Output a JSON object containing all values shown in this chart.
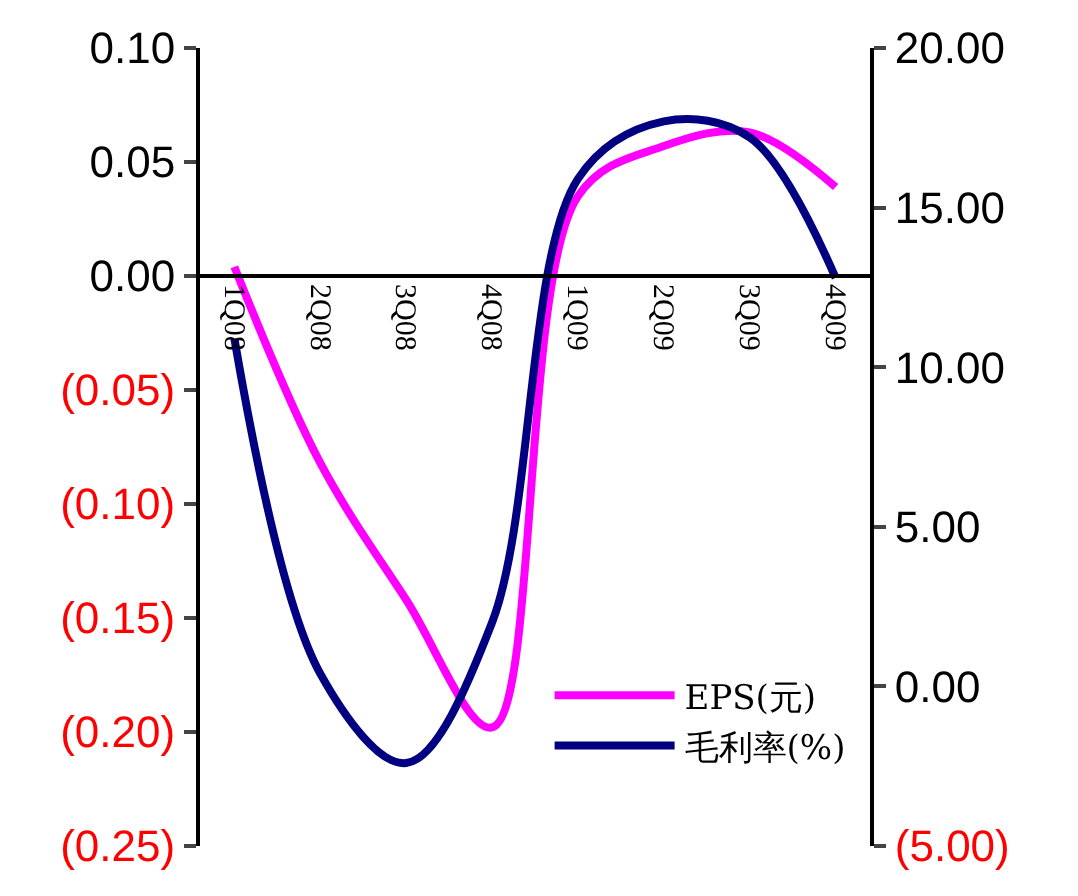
{
  "chart_data": {
    "type": "line",
    "categories": [
      "1Q08",
      "2Q08",
      "3Q08",
      "4Q08",
      "1Q09",
      "2Q09",
      "3Q09",
      "4Q09"
    ],
    "series": [
      {
        "name": "EPS(元)",
        "color": "#ff00ff",
        "values": [
          0.004,
          -0.082,
          -0.142,
          -0.198,
          0.035,
          0.057,
          0.063,
          0.039
        ]
      },
      {
        "name": "毛利率(%)",
        "color": "#000080",
        "axis": "y2",
        "values": [
          10.9,
          0.4,
          -2.4,
          2.0,
          15.9,
          17.7,
          17.2,
          12.8
        ]
      }
    ],
    "ylim": [
      -0.25,
      0.1
    ],
    "yticks": [
      {
        "value": -0.25,
        "label": "(0.25)"
      },
      {
        "value": -0.2,
        "label": "(0.20)"
      },
      {
        "value": -0.15,
        "label": "(0.15)"
      },
      {
        "value": -0.1,
        "label": "(0.10)"
      },
      {
        "value": -0.05,
        "label": "(0.05)"
      },
      {
        "value": 0,
        "label": "0.00"
      },
      {
        "value": 0.05,
        "label": "0.05"
      },
      {
        "value": 0.1,
        "label": "0.10"
      }
    ],
    "y2lim": [
      -5,
      20
    ],
    "y2ticks": [
      {
        "value": -5,
        "label": "(5.00)"
      },
      {
        "value": 0,
        "label": "0.00"
      },
      {
        "value": 5,
        "label": "5.00"
      },
      {
        "value": 10,
        "label": "10.00"
      },
      {
        "value": 15,
        "label": "15.00"
      },
      {
        "value": 20,
        "label": "20.00"
      }
    ],
    "legend": "bottom right",
    "marker": "none",
    "line_style": "solid"
  }
}
